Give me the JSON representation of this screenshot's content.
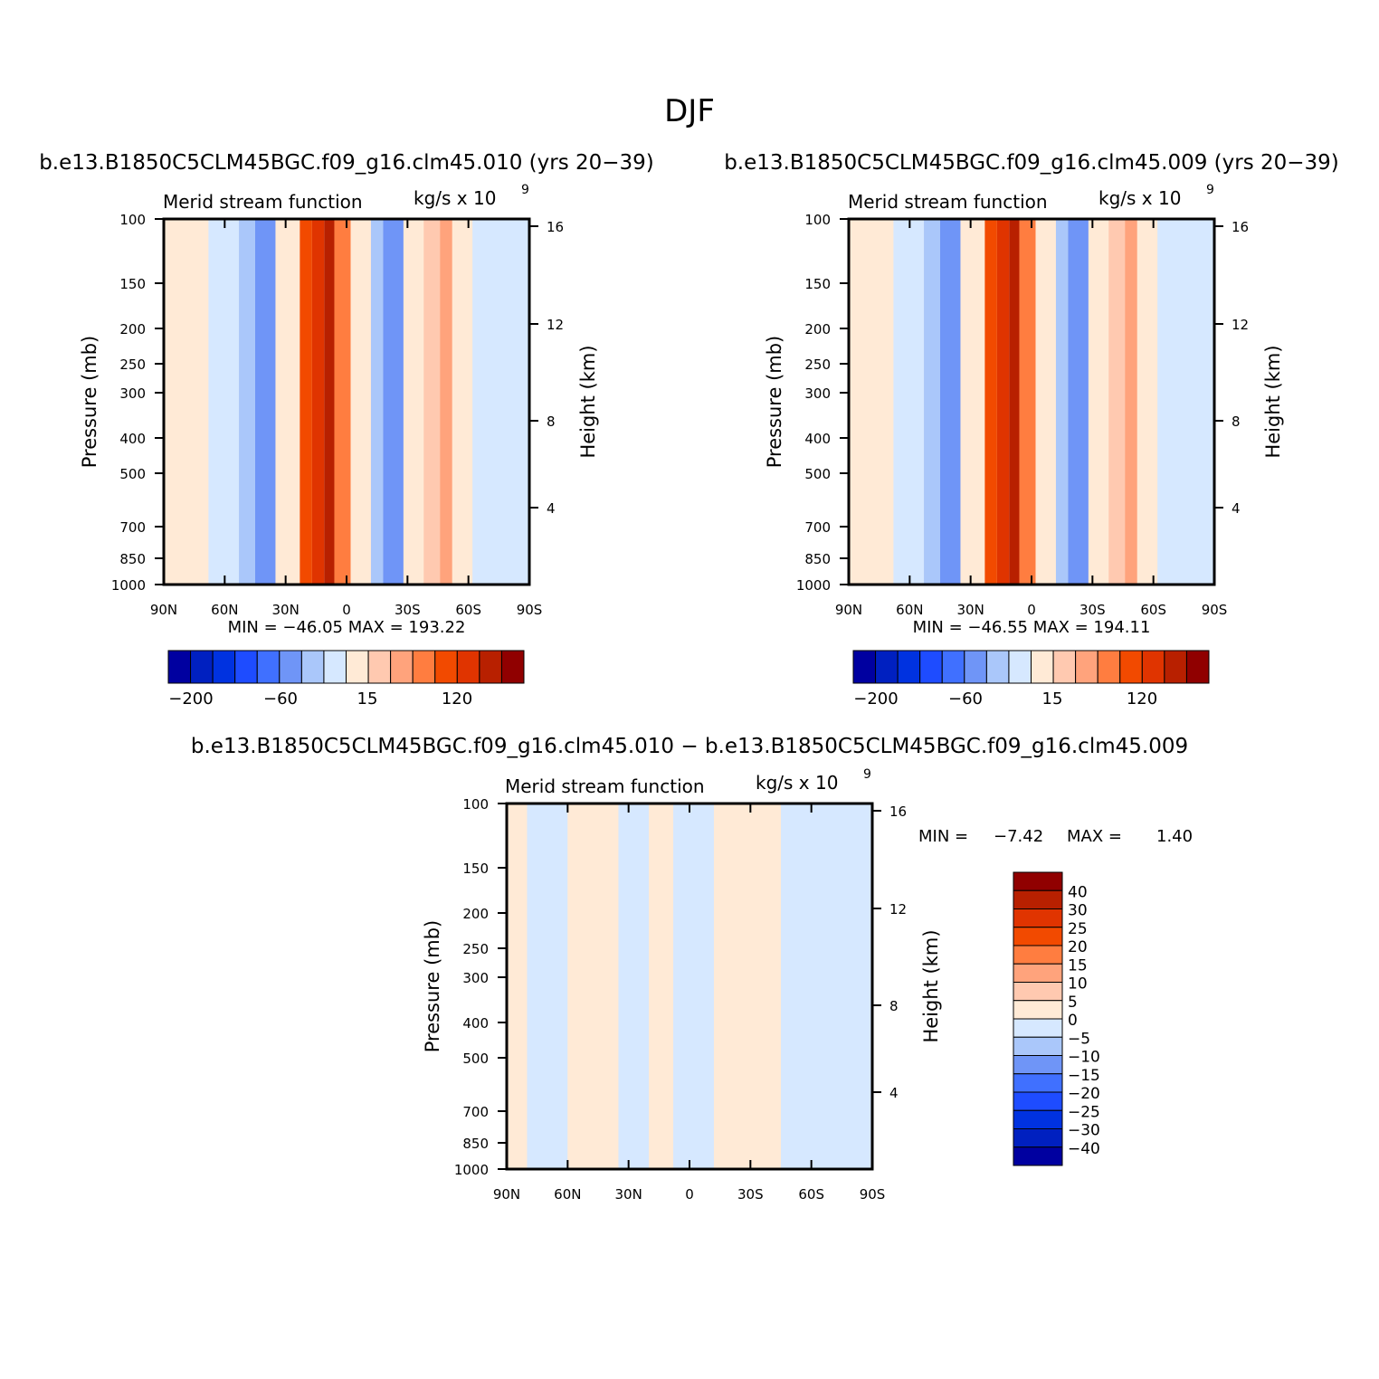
{
  "figure": {
    "title": "DJF",
    "diff_title": "b.e13.B1850C5CLM45BGC.f09_g16.clm45.010 − b.e13.B1850C5CLM45BGC.f09_g16.clm45.009"
  },
  "colors": {
    "fill_scale": [
      "#0000a0",
      "#0020c0",
      "#0032e0",
      "#1e4cff",
      "#4070ff",
      "#6f95f7",
      "#aac7fa",
      "#d6e8ff",
      "#ffead6",
      "#ffc9b0",
      "#ffa37c",
      "#ff7d40",
      "#f24a00",
      "#e03400",
      "#b82000",
      "#900000"
    ],
    "frame": "#000000"
  },
  "chart_data": [
    {
      "type": "heatmap",
      "id": "left",
      "title": "b.e13.B1850C5CLM45BGC.f09_g16.clm45.010 (yrs 20−39)",
      "subtitle_left": "Merid stream function",
      "subtitle_right": "kg/s x 10",
      "subtitle_exp": "9",
      "ylabel": "Pressure (mb)",
      "y2label": "Height (km)",
      "x_ticks": [
        "90N",
        "60N",
        "30N",
        "0",
        "30S",
        "60S",
        "90S"
      ],
      "y_ticks": [
        "100",
        "150",
        "200",
        "250",
        "300",
        "400",
        "500",
        "700",
        "850",
        "1000"
      ],
      "y2_ticks": [
        "16",
        "12",
        "8",
        "4"
      ],
      "stats": "MIN = −46.05   MAX = 193.22",
      "colorbar_labels": [
        "−200",
        "−60",
        "15",
        "120"
      ],
      "cells": [
        {
          "lat0": 90,
          "lat1": 68,
          "level": 8
        },
        {
          "lat0": 68,
          "lat1": 53,
          "level": 7
        },
        {
          "lat0": 53,
          "lat1": 45,
          "level": 6
        },
        {
          "lat0": 45,
          "lat1": 35,
          "level": 5
        },
        {
          "lat0": 28,
          "lat1": 23,
          "level": 8
        },
        {
          "lat0": 23,
          "lat1": 17,
          "level": 12
        },
        {
          "lat0": 17,
          "lat1": 11,
          "level": 13
        },
        {
          "lat0": 11,
          "lat1": 6,
          "level": 14
        },
        {
          "lat0": 6,
          "lat1": -2,
          "level": 11
        },
        {
          "lat0": -12,
          "lat1": -18,
          "level": 6
        },
        {
          "lat0": -18,
          "lat1": -28,
          "level": 5
        },
        {
          "lat0": -38,
          "lat1": -46,
          "level": 9
        },
        {
          "lat0": -46,
          "lat1": -52,
          "level": 10
        },
        {
          "lat0": -62,
          "lat1": -90,
          "level": 7
        }
      ]
    },
    {
      "type": "heatmap",
      "id": "right",
      "title": "b.e13.B1850C5CLM45BGC.f09_g16.clm45.009 (yrs 20−39)",
      "subtitle_left": "Merid stream function",
      "subtitle_right": "kg/s x 10",
      "subtitle_exp": "9",
      "ylabel": "Pressure (mb)",
      "y2label": "Height (km)",
      "x_ticks": [
        "90N",
        "60N",
        "30N",
        "0",
        "30S",
        "60S",
        "90S"
      ],
      "y_ticks": [
        "100",
        "150",
        "200",
        "250",
        "300",
        "400",
        "500",
        "700",
        "850",
        "1000"
      ],
      "y2_ticks": [
        "16",
        "12",
        "8",
        "4"
      ],
      "stats": "MIN = −46.55   MAX = 194.11",
      "colorbar_labels": [
        "−200",
        "−60",
        "15",
        "120"
      ],
      "cells": [
        {
          "lat0": 90,
          "lat1": 68,
          "level": 8
        },
        {
          "lat0": 68,
          "lat1": 53,
          "level": 7
        },
        {
          "lat0": 53,
          "lat1": 45,
          "level": 6
        },
        {
          "lat0": 45,
          "lat1": 35,
          "level": 5
        },
        {
          "lat0": 28,
          "lat1": 23,
          "level": 8
        },
        {
          "lat0": 23,
          "lat1": 17,
          "level": 12
        },
        {
          "lat0": 17,
          "lat1": 11,
          "level": 13
        },
        {
          "lat0": 11,
          "lat1": 6,
          "level": 14
        },
        {
          "lat0": 6,
          "lat1": -2,
          "level": 11
        },
        {
          "lat0": -12,
          "lat1": -18,
          "level": 6
        },
        {
          "lat0": -18,
          "lat1": -28,
          "level": 5
        },
        {
          "lat0": -38,
          "lat1": -46,
          "level": 9
        },
        {
          "lat0": -46,
          "lat1": -52,
          "level": 10
        },
        {
          "lat0": -62,
          "lat1": -90,
          "level": 7
        }
      ]
    },
    {
      "type": "heatmap",
      "id": "diff",
      "subtitle_left": "Merid stream function",
      "subtitle_right": "kg/s x 10",
      "subtitle_exp": "9",
      "ylabel": "Pressure (mb)",
      "y2label": "Height (km)",
      "x_ticks": [
        "90N",
        "60N",
        "30N",
        "0",
        "30S",
        "60S",
        "90S"
      ],
      "y_ticks": [
        "100",
        "150",
        "200",
        "250",
        "300",
        "400",
        "500",
        "700",
        "850",
        "1000"
      ],
      "y2_ticks": [
        "16",
        "12",
        "8",
        "4"
      ],
      "stats_min_label": "MIN =",
      "stats_min": "−7.42",
      "stats_max_label": "MAX =",
      "stats_max": "1.40",
      "colorbar_labels": [
        "40",
        "30",
        "25",
        "20",
        "15",
        "10",
        "5",
        "0",
        "−5",
        "−10",
        "−15",
        "−20",
        "−25",
        "−30",
        "−40"
      ],
      "cells": [
        {
          "lat0": 90,
          "lat1": 80,
          "level": 8
        },
        {
          "lat0": 80,
          "lat1": 60,
          "level": 7
        },
        {
          "lat0": 60,
          "lat1": 35,
          "level": 8
        },
        {
          "lat0": 35,
          "lat1": 20,
          "level": 7
        },
        {
          "lat0": 20,
          "lat1": 10,
          "level": 8
        },
        {
          "lat0": 8,
          "lat1": -12,
          "level": 7
        },
        {
          "lat0": -5,
          "lat1": -2,
          "level": 6
        },
        {
          "lat0": -14,
          "lat1": -45,
          "level": 8
        },
        {
          "lat0": -45,
          "lat1": -90,
          "level": 7
        }
      ]
    }
  ]
}
